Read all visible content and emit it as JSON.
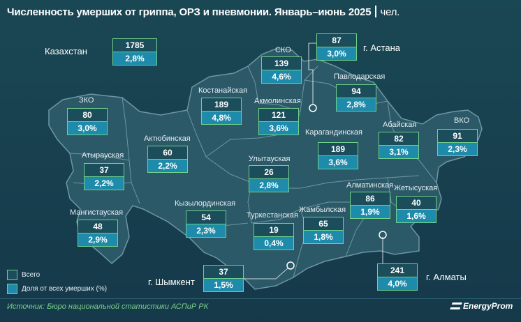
{
  "chart_data": {
    "type": "table",
    "title": "Численность умерших от гриппа, ОРЗ и пневмонии. Январь–июнь 2025",
    "unit": "чел.",
    "columns": [
      "Всего",
      "Доля от всех умерших (%)"
    ],
    "rows": [
      {
        "region": "Казахстан",
        "total": "1785",
        "share": "2,8%"
      },
      {
        "region": "СКО",
        "total": "139",
        "share": "4,6%"
      },
      {
        "region": "г. Астана",
        "total": "87",
        "share": "3,0%"
      },
      {
        "region": "Павлодарская",
        "total": "94",
        "share": "2,8%"
      },
      {
        "region": "Костанайская",
        "total": "189",
        "share": "4,8%"
      },
      {
        "region": "Акмолинская",
        "total": "121",
        "share": "3,6%"
      },
      {
        "region": "ЗКО",
        "total": "80",
        "share": "3,0%"
      },
      {
        "region": "Абайская",
        "total": "82",
        "share": "3,1%"
      },
      {
        "region": "ВКО",
        "total": "91",
        "share": "2,3%"
      },
      {
        "region": "Карагандинская",
        "total": "189",
        "share": "3,6%"
      },
      {
        "region": "Актюбинская",
        "total": "60",
        "share": "2,2%"
      },
      {
        "region": "Атырауская",
        "total": "37",
        "share": "2,2%"
      },
      {
        "region": "Улытауская",
        "total": "26",
        "share": "2,8%"
      },
      {
        "region": "Алматинская",
        "total": "86",
        "share": "1,9%"
      },
      {
        "region": "Жетысуская",
        "total": "40",
        "share": "1,6%"
      },
      {
        "region": "Кызылординская",
        "total": "54",
        "share": "2,3%"
      },
      {
        "region": "Мангистауская",
        "total": "48",
        "share": "2,9%"
      },
      {
        "region": "Жамбылская",
        "total": "65",
        "share": "1,8%"
      },
      {
        "region": "Туркестанская",
        "total": "19",
        "share": "0,4%"
      },
      {
        "region": "г. Шымкент",
        "total": "37",
        "share": "1,5%"
      },
      {
        "region": "г. Алматы",
        "total": "241",
        "share": "4,0%"
      }
    ],
    "legend": [
      "Всего",
      "Доля от всех умерших (%)"
    ],
    "source": "Источник: Бюро национальной статистики АСПиР РК",
    "logo": "EnergyProm",
    "colors": {
      "background": "#17404c",
      "map_fill": "#2b5968",
      "total_box": "#1b4d5b",
      "share_box": "#1f8bab",
      "box_border": "#6fd18c",
      "source_text": "#7dd08f"
    }
  }
}
